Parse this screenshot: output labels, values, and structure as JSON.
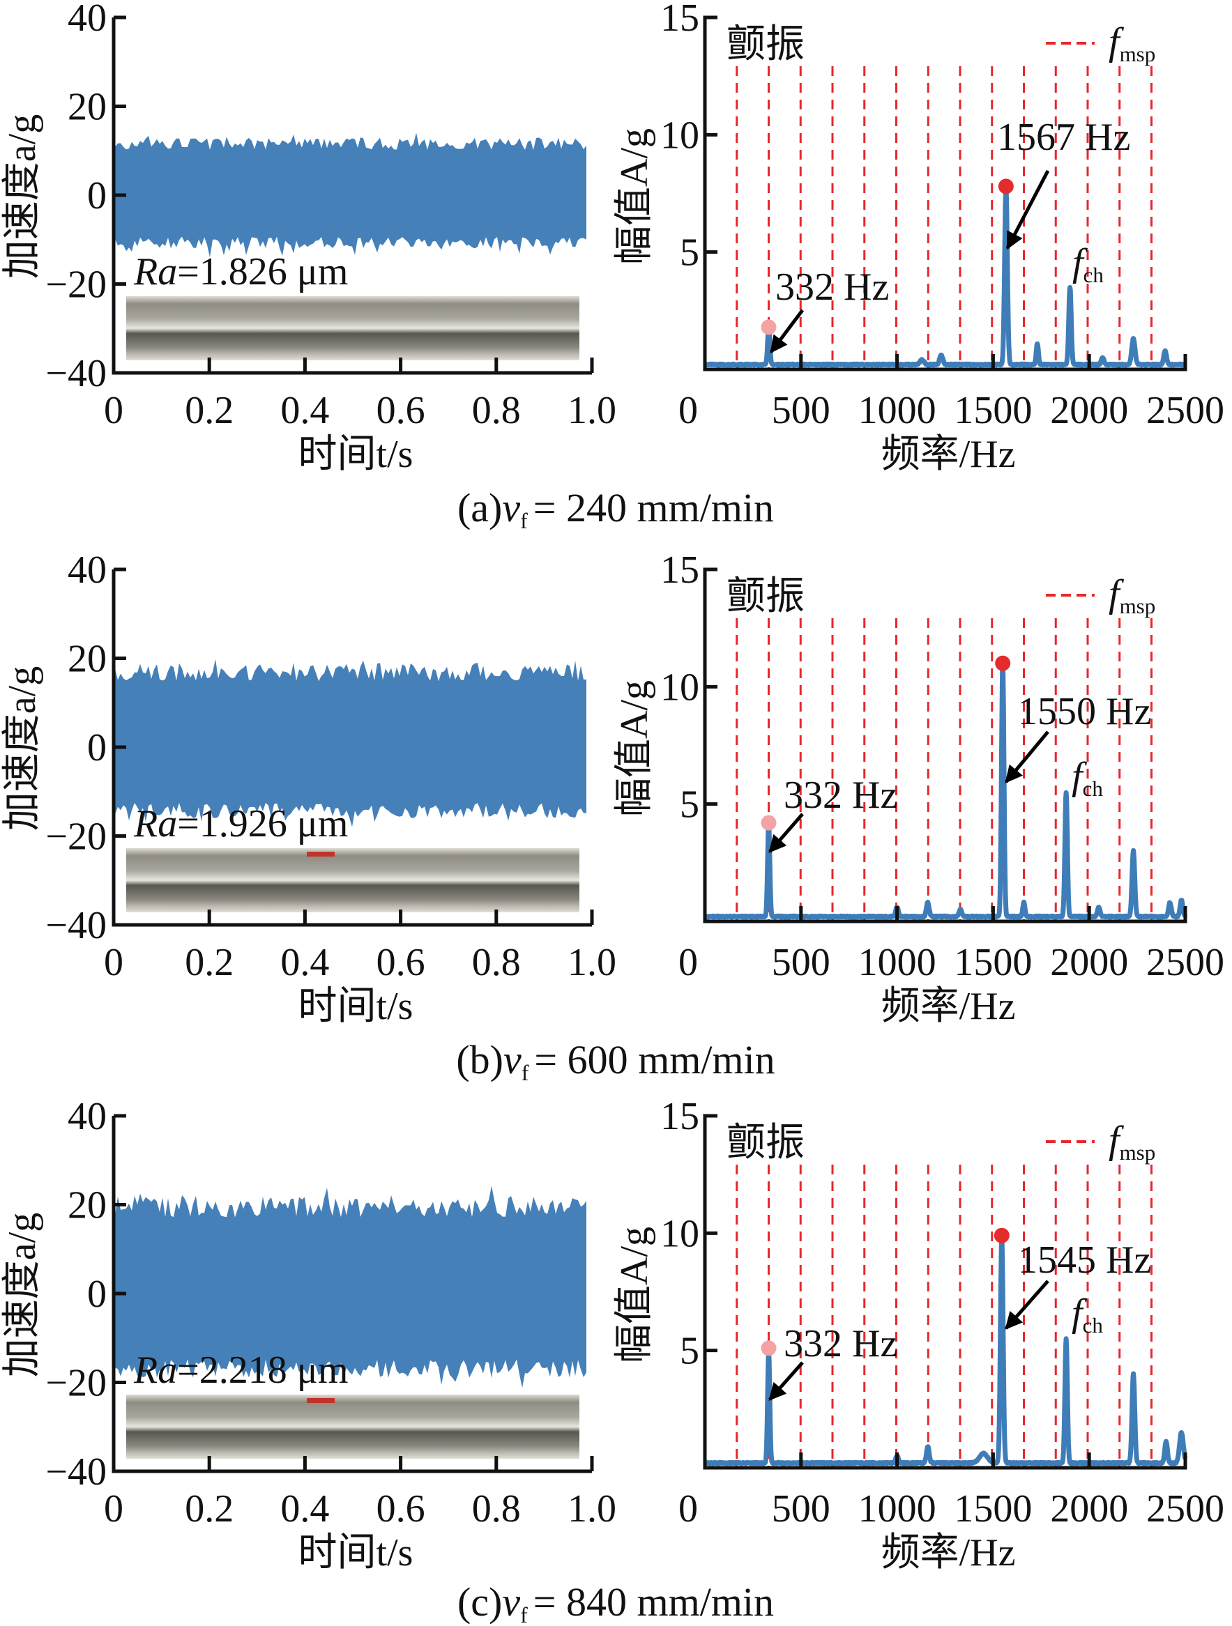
{
  "colors": {
    "signal": "#4580b9",
    "spectrum": "#3f7db8",
    "msp_line": "#e8262b",
    "peak_main": "#e52b2b",
    "peak_minor": "#f3a3a3",
    "axis": "#111111"
  },
  "legend": {
    "label_f": "f",
    "label_sub": "msp"
  },
  "chatter_label": "颤振",
  "fch_label": {
    "f": "f",
    "sub": "ch"
  },
  "panels": [
    {
      "caption": {
        "label": "(a)",
        "var": "v",
        "sub": "f",
        "value": "= 240 mm/min"
      },
      "ra_label": "Ra",
      "ra_value": "=1.826 μm"
    },
    {
      "caption": {
        "label": "(b)",
        "var": "v",
        "sub": "f",
        "value": "= 600 mm/min"
      },
      "ra_label": "Ra",
      "ra_value": "=1.926 μm"
    },
    {
      "caption": {
        "label": "(c)",
        "var": "v",
        "sub": "f",
        "value": "= 840 mm/min"
      },
      "ra_label": "Ra",
      "ra_value": "=2.218 μm"
    }
  ],
  "chart_data": [
    {
      "panel": "a",
      "type": "area",
      "title": "",
      "xlabel": "时间t/s",
      "ylabel": "加速度a/g",
      "xlim": [
        0,
        1.0
      ],
      "ylim": [
        -40,
        40
      ],
      "xticks": [
        "0",
        "0.2",
        "0.4",
        "0.6",
        "0.8",
        "1.0"
      ],
      "yticks": [
        "40",
        "20",
        "0",
        "−20",
        "−40"
      ],
      "envelope_upper": 13,
      "envelope_lower": -12
    },
    {
      "panel": "a",
      "type": "line",
      "xlabel": "频率/Hz",
      "ylabel": "幅值A/g",
      "xlim": [
        0,
        2500
      ],
      "ylim": [
        0,
        15
      ],
      "xticks": [
        "0",
        "500",
        "1000",
        "1500",
        "2000",
        "2500"
      ],
      "yticks": [
        "15",
        "10",
        "5"
      ],
      "msp_lines": [
        166,
        332,
        498,
        664,
        830,
        996,
        1162,
        1328,
        1494,
        1660,
        1826,
        1992,
        2158,
        2324
      ],
      "peaks": [
        {
          "f": 332,
          "A": 1.6,
          "w": 8
        },
        {
          "f": 1130,
          "A": 0.2,
          "w": 15
        },
        {
          "f": 1230,
          "A": 0.4,
          "w": 12
        },
        {
          "f": 1567,
          "A": 7.5,
          "w": 10
        },
        {
          "f": 1730,
          "A": 0.9,
          "w": 8
        },
        {
          "f": 1900,
          "A": 3.3,
          "w": 9
        },
        {
          "f": 2070,
          "A": 0.3,
          "w": 10
        },
        {
          "f": 2230,
          "A": 1.1,
          "w": 12
        },
        {
          "f": 2395,
          "A": 0.6,
          "w": 10
        }
      ],
      "markers": [
        {
          "f": 332,
          "A": 1.8,
          "kind": "minor",
          "label": "332 Hz"
        },
        {
          "f": 1567,
          "A": 7.8,
          "kind": "main",
          "label": "1567 Hz"
        }
      ]
    },
    {
      "panel": "b",
      "type": "area",
      "xlabel": "时间t/s",
      "ylabel": "加速度a/g",
      "xlim": [
        0,
        1.0
      ],
      "ylim": [
        -40,
        40
      ],
      "xticks": [
        "0",
        "0.2",
        "0.4",
        "0.6",
        "0.8",
        "1.0"
      ],
      "yticks": [
        "40",
        "20",
        "0",
        "−20",
        "−40"
      ],
      "envelope_upper": 19,
      "envelope_lower": -16
    },
    {
      "panel": "b",
      "type": "line",
      "xlabel": "频率/Hz",
      "ylabel": "幅值A/g",
      "xlim": [
        0,
        2500
      ],
      "ylim": [
        0,
        15
      ],
      "xticks": [
        "0",
        "500",
        "1000",
        "1500",
        "2000",
        "2500"
      ],
      "yticks": [
        "15",
        "10",
        "5"
      ],
      "msp_lines": [
        166,
        332,
        498,
        664,
        830,
        996,
        1162,
        1328,
        1494,
        1660,
        1826,
        1992,
        2158,
        2324
      ],
      "peaks": [
        {
          "f": 332,
          "A": 3.9,
          "w": 8
        },
        {
          "f": 1000,
          "A": 0.4,
          "w": 10
        },
        {
          "f": 1160,
          "A": 0.6,
          "w": 10
        },
        {
          "f": 1330,
          "A": 0.3,
          "w": 10
        },
        {
          "f": 1550,
          "A": 10.8,
          "w": 9
        },
        {
          "f": 1660,
          "A": 0.6,
          "w": 8
        },
        {
          "f": 1880,
          "A": 5.3,
          "w": 9
        },
        {
          "f": 2050,
          "A": 0.4,
          "w": 10
        },
        {
          "f": 2230,
          "A": 2.8,
          "w": 10
        },
        {
          "f": 2420,
          "A": 0.6,
          "w": 10
        },
        {
          "f": 2480,
          "A": 0.7,
          "w": 10
        }
      ],
      "markers": [
        {
          "f": 332,
          "A": 4.2,
          "kind": "minor",
          "label": "332 Hz"
        },
        {
          "f": 1550,
          "A": 11.0,
          "kind": "main",
          "label": "1550 Hz"
        }
      ]
    },
    {
      "panel": "c",
      "type": "area",
      "xlabel": "时间t/s",
      "ylabel": "加速度a/g",
      "xlim": [
        0,
        1.0
      ],
      "ylim": [
        -40,
        40
      ],
      "xticks": [
        "0",
        "0.2",
        "0.4",
        "0.6",
        "0.8",
        "1.0"
      ],
      "yticks": [
        "40",
        "20",
        "0",
        "−20",
        "−40"
      ],
      "envelope_upper": 22,
      "envelope_lower": -19
    },
    {
      "panel": "c",
      "type": "line",
      "xlabel": "频率/Hz",
      "ylabel": "幅值A/g",
      "xlim": [
        0,
        2500
      ],
      "ylim": [
        0,
        15
      ],
      "xticks": [
        "0",
        "500",
        "1000",
        "1500",
        "2000",
        "2500"
      ],
      "yticks": [
        "15",
        "10",
        "5"
      ],
      "msp_lines": [
        166,
        332,
        498,
        664,
        830,
        996,
        1162,
        1328,
        1494,
        1660,
        1826,
        1992,
        2158,
        2324
      ],
      "peaks": [
        {
          "f": 332,
          "A": 4.7,
          "w": 8
        },
        {
          "f": 1000,
          "A": 0.3,
          "w": 10
        },
        {
          "f": 1160,
          "A": 0.7,
          "w": 10
        },
        {
          "f": 1450,
          "A": 0.4,
          "w": 30
        },
        {
          "f": 1545,
          "A": 9.6,
          "w": 10
        },
        {
          "f": 1880,
          "A": 5.3,
          "w": 9
        },
        {
          "f": 2230,
          "A": 3.8,
          "w": 10
        },
        {
          "f": 2400,
          "A": 0.9,
          "w": 10
        },
        {
          "f": 2480,
          "A": 1.3,
          "w": 14
        }
      ],
      "markers": [
        {
          "f": 332,
          "A": 5.1,
          "kind": "minor",
          "label": "332 Hz"
        },
        {
          "f": 1545,
          "A": 9.9,
          "kind": "main",
          "label": "1545 Hz"
        }
      ]
    }
  ]
}
